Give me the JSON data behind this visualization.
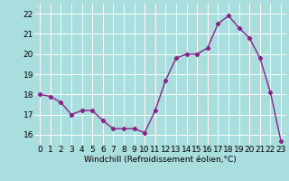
{
  "x": [
    0,
    1,
    2,
    3,
    4,
    5,
    6,
    7,
    8,
    9,
    10,
    11,
    12,
    13,
    14,
    15,
    16,
    17,
    18,
    19,
    20,
    21,
    22,
    23
  ],
  "y": [
    18.0,
    17.9,
    17.6,
    17.0,
    17.2,
    17.2,
    16.7,
    16.3,
    16.3,
    16.3,
    16.1,
    17.2,
    18.7,
    19.8,
    20.0,
    20.0,
    20.3,
    21.5,
    21.9,
    21.3,
    20.8,
    19.8,
    18.1,
    15.7
  ],
  "line_color": "#882288",
  "marker": "D",
  "marker_size": 2.2,
  "bg_color": "#aadddd",
  "grid_color": "#ffffff",
  "xlabel": "Windchill (Refroidissement éolien,°C)",
  "ylim": [
    15.5,
    22.5
  ],
  "xlim": [
    -0.5,
    23.5
  ],
  "yticks": [
    16,
    17,
    18,
    19,
    20,
    21,
    22
  ],
  "xticks": [
    0,
    1,
    2,
    3,
    4,
    5,
    6,
    7,
    8,
    9,
    10,
    11,
    12,
    13,
    14,
    15,
    16,
    17,
    18,
    19,
    20,
    21,
    22,
    23
  ],
  "xlabel_fontsize": 6.5,
  "tick_fontsize": 6.5,
  "line_width": 1.0
}
